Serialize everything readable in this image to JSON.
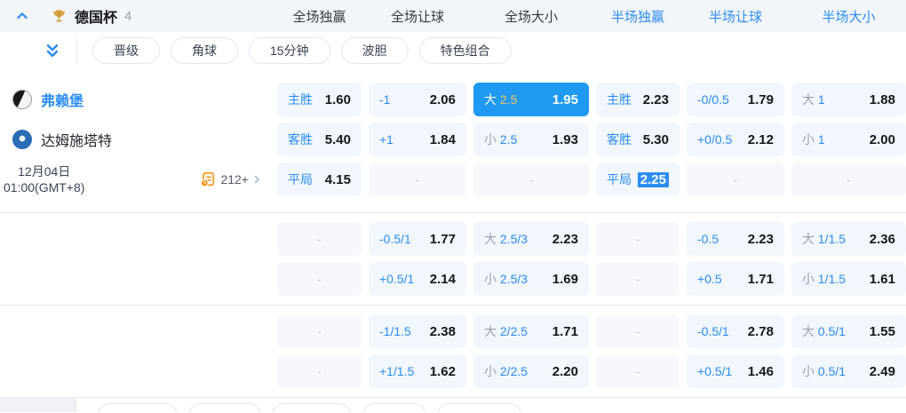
{
  "header": {
    "league": "德国杯",
    "count": "4",
    "columns": [
      {
        "label": "全场独赢",
        "active": false
      },
      {
        "label": "全场让球",
        "active": false
      },
      {
        "label": "全场大小",
        "active": false
      },
      {
        "label": "半场独赢",
        "active": true
      },
      {
        "label": "半场让球",
        "active": true
      },
      {
        "label": "半场大小",
        "active": true
      }
    ]
  },
  "filters": [
    "晋级",
    "角球",
    "15分钟",
    "波胆",
    "特色组合"
  ],
  "match": {
    "home_team": "弗赖堡",
    "away_team": "达姆施塔特",
    "date_line1": "12月04日",
    "date_line2": "01:00(GMT+8)",
    "more_markets_count": "212+"
  },
  "colors": {
    "accent_blue": "#2a8cf2",
    "selected_cell_bg": "#1e9af2",
    "selected_line_gold": "#f3c261",
    "more_icon_orange": "#f59b25"
  },
  "odds": {
    "dash": "-",
    "groups": [
      {
        "rows": [
          [
            {
              "type": "outcome",
              "label": "主胜",
              "value": "1.60"
            },
            {
              "type": "handicap",
              "label": "-1",
              "value": "2.06"
            },
            {
              "type": "ou",
              "label": "大",
              "line": "2.5",
              "value": "1.95",
              "selected": true
            },
            {
              "type": "outcome",
              "label": "主胜",
              "value": "2.23"
            },
            {
              "type": "handicap",
              "label": "-0/0.5",
              "value": "1.79"
            },
            {
              "type": "ou",
              "label": "大",
              "line": "1",
              "value": "1.88"
            }
          ],
          [
            {
              "type": "outcome",
              "label": "客胜",
              "value": "5.40"
            },
            {
              "type": "handicap",
              "label": "+1",
              "value": "1.84"
            },
            {
              "type": "ou",
              "label": "小",
              "line": "2.5",
              "value": "1.93"
            },
            {
              "type": "outcome",
              "label": "客胜",
              "value": "5.30"
            },
            {
              "type": "handicap",
              "label": "+0/0.5",
              "value": "2.12"
            },
            {
              "type": "ou",
              "label": "小",
              "line": "1",
              "value": "2.00"
            }
          ],
          [
            {
              "type": "outcome",
              "label": "平局",
              "value": "4.15"
            },
            {
              "type": "empty"
            },
            {
              "type": "empty"
            },
            {
              "type": "outcome",
              "label": "平局",
              "value": "2.25",
              "highlighted": true
            },
            {
              "type": "empty"
            },
            {
              "type": "empty"
            }
          ]
        ]
      },
      {
        "rows": [
          [
            {
              "type": "empty"
            },
            {
              "type": "handicap",
              "label": "-0.5/1",
              "value": "1.77"
            },
            {
              "type": "ou",
              "label": "大",
              "line": "2.5/3",
              "value": "2.23"
            },
            {
              "type": "empty"
            },
            {
              "type": "handicap",
              "label": "-0.5",
              "value": "2.23"
            },
            {
              "type": "ou",
              "label": "大",
              "line": "1/1.5",
              "value": "2.36"
            }
          ],
          [
            {
              "type": "empty"
            },
            {
              "type": "handicap",
              "label": "+0.5/1",
              "value": "2.14"
            },
            {
              "type": "ou",
              "label": "小",
              "line": "2.5/3",
              "value": "1.69"
            },
            {
              "type": "empty"
            },
            {
              "type": "handicap",
              "label": "+0.5",
              "value": "1.71"
            },
            {
              "type": "ou",
              "label": "小",
              "line": "1/1.5",
              "value": "1.61"
            }
          ]
        ]
      },
      {
        "rows": [
          [
            {
              "type": "empty"
            },
            {
              "type": "handicap",
              "label": "-1/1.5",
              "value": "2.38"
            },
            {
              "type": "ou",
              "label": "大",
              "line": "2/2.5",
              "value": "1.71"
            },
            {
              "type": "empty"
            },
            {
              "type": "handicap",
              "label": "-0.5/1",
              "value": "2.78"
            },
            {
              "type": "ou",
              "label": "大",
              "line": "0.5/1",
              "value": "1.55"
            }
          ],
          [
            {
              "type": "empty"
            },
            {
              "type": "handicap",
              "label": "+1/1.5",
              "value": "1.62"
            },
            {
              "type": "ou",
              "label": "小",
              "line": "2/2.5",
              "value": "2.20"
            },
            {
              "type": "empty"
            },
            {
              "type": "handicap",
              "label": "+0.5/1",
              "value": "1.46"
            },
            {
              "type": "ou",
              "label": "小",
              "line": "0.5/1",
              "value": "2.49"
            }
          ]
        ]
      }
    ]
  },
  "bottom": {
    "visible_pill_count": 5
  }
}
